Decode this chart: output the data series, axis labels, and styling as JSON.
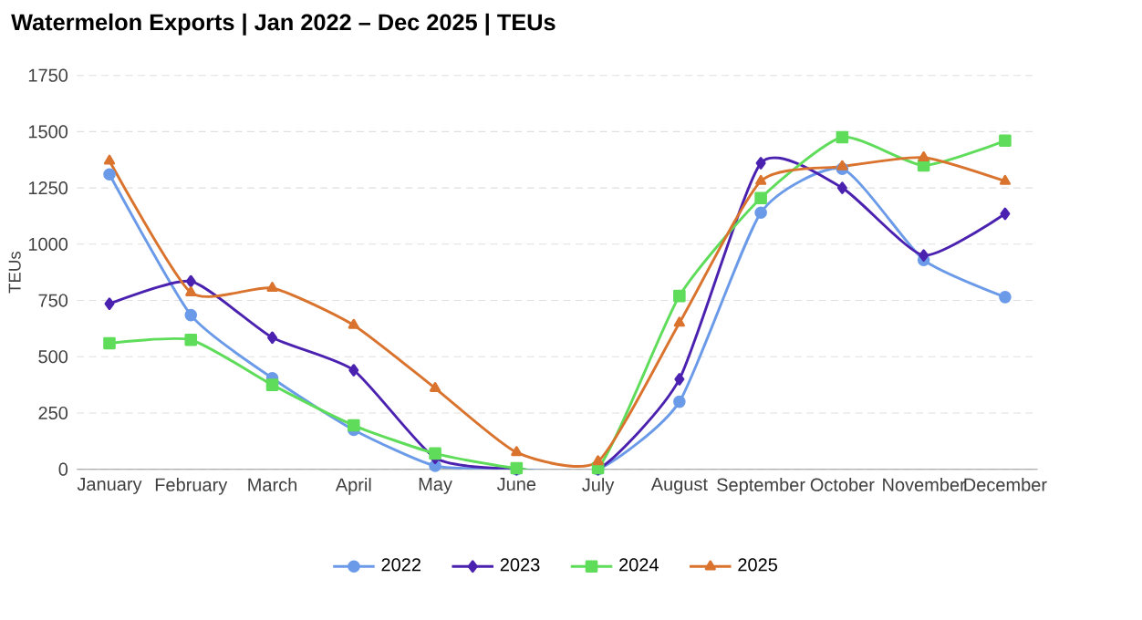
{
  "chart_data": {
    "type": "line",
    "title": "Watermelon Exports | Jan 2022 – Dec 2025 | TEUs",
    "ylabel": "TEUs",
    "categories": [
      "January",
      "February",
      "March",
      "April",
      "May",
      "June",
      "July",
      "August",
      "September",
      "October",
      "November",
      "December"
    ],
    "series": [
      {
        "name": "2022",
        "color": "#6b9be8",
        "marker": "circle",
        "values": [
          1310,
          685,
          405,
          175,
          15,
          0,
          0,
          300,
          1140,
          1335,
          930,
          765
        ]
      },
      {
        "name": "2023",
        "color": "#4b22b0",
        "marker": "diamond",
        "values": [
          735,
          835,
          585,
          440,
          50,
          0,
          0,
          400,
          1360,
          1250,
          950,
          1135
        ]
      },
      {
        "name": "2024",
        "color": "#5fdc5a",
        "marker": "square",
        "values": [
          560,
          575,
          375,
          195,
          70,
          5,
          5,
          770,
          1205,
          1475,
          1350,
          1460
        ]
      },
      {
        "name": "2025",
        "color": "#d9732e",
        "marker": "triangle",
        "values": [
          1370,
          785,
          805,
          640,
          360,
          75,
          35,
          650,
          1280,
          1345,
          1385,
          1280
        ]
      }
    ],
    "ylim": [
      0,
      1750
    ],
    "yticks": [
      0,
      250,
      500,
      750,
      1000,
      1250,
      1500,
      1750
    ],
    "grid": "y",
    "legend": "bottom",
    "line_style": "solid"
  }
}
